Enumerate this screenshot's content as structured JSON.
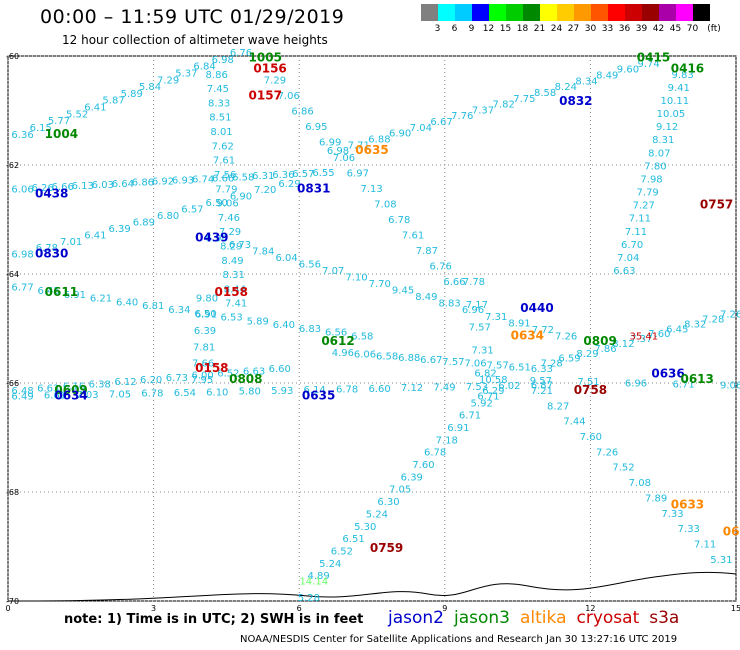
{
  "header": {
    "title": "00:00 – 11:59 UTC 01/29/2019",
    "subtitle": "12 hour collection of altimeter wave heights"
  },
  "legend": {
    "unit": "(ft)",
    "bins": [
      {
        "label": "3",
        "color": "#808080"
      },
      {
        "label": "6",
        "color": "#00ffff"
      },
      {
        "label": "9",
        "color": "#00ccff"
      },
      {
        "label": "12",
        "color": "#0000ff"
      },
      {
        "label": "15",
        "color": "#00ff00"
      },
      {
        "label": "18",
        "color": "#00cc00"
      },
      {
        "label": "21",
        "color": "#008800"
      },
      {
        "label": "24",
        "color": "#ffff00"
      },
      {
        "label": "27",
        "color": "#ffcc00"
      },
      {
        "label": "30",
        "color": "#ff9900"
      },
      {
        "label": "33",
        "color": "#ff5500"
      },
      {
        "label": "36",
        "color": "#ff0000"
      },
      {
        "label": "39",
        "color": "#cc0000"
      },
      {
        "label": "42",
        "color": "#990000"
      },
      {
        "label": "45",
        "color": "#aa00aa"
      },
      {
        "label": "70",
        "color": "#ff00ff"
      },
      {
        "label": "",
        "color": "#000000"
      }
    ]
  },
  "map": {
    "lat_labels": [
      "-60",
      "-62",
      "-64",
      "-66",
      "-68",
      "-70"
    ],
    "lon_labels": [
      "0",
      "3",
      "6",
      "9",
      "12",
      "15"
    ],
    "lat_range": [
      -70,
      -60
    ],
    "lon_range": [
      0,
      15
    ],
    "pass_tags": [
      {
        "text": "1004",
        "color": "#008800",
        "lon": 1.1,
        "lat": -61.5
      },
      {
        "text": "1005",
        "color": "#008800",
        "lon": 5.3,
        "lat": -60.1
      },
      {
        "text": "0156",
        "color": "#cc0000",
        "lon": 5.4,
        "lat": -60.3
      },
      {
        "text": "0157",
        "color": "#cc0000",
        "lon": 5.3,
        "lat": -60.8
      },
      {
        "text": "0415",
        "color": "#008800",
        "lon": 13.3,
        "lat": -60.1
      },
      {
        "text": "0416",
        "color": "#008800",
        "lon": 14.0,
        "lat": -60.3
      },
      {
        "text": "0832",
        "color": "#0000cc",
        "lon": 11.7,
        "lat": -60.9
      },
      {
        "text": "0635",
        "color": "#ff8800",
        "lon": 7.5,
        "lat": -61.8
      },
      {
        "text": "0438",
        "color": "#0000cc",
        "lon": 0.9,
        "lat": -62.6
      },
      {
        "text": "0831",
        "color": "#0000cc",
        "lon": 6.3,
        "lat": -62.5
      },
      {
        "text": "0757",
        "color": "#990000",
        "lon": 14.6,
        "lat": -62.8
      },
      {
        "text": "0439",
        "color": "#0000cc",
        "lon": 4.2,
        "lat": -63.4
      },
      {
        "text": "0830",
        "color": "#0000cc",
        "lon": 0.9,
        "lat": -63.7
      },
      {
        "text": "0611",
        "color": "#008800",
        "lon": 1.1,
        "lat": -64.4
      },
      {
        "text": "0158",
        "color": "#cc0000",
        "lon": 4.6,
        "lat": -64.4
      },
      {
        "text": "0440",
        "color": "#0000cc",
        "lon": 10.9,
        "lat": -64.7
      },
      {
        "text": "0634",
        "color": "#ff8800",
        "lon": 10.7,
        "lat": -65.2
      },
      {
        "text": "0612",
        "color": "#008800",
        "lon": 6.8,
        "lat": -65.3
      },
      {
        "text": "0809",
        "color": "#008800",
        "lon": 12.2,
        "lat": -65.3
      },
      {
        "text": "0158",
        "color": "#cc0000",
        "lon": 4.2,
        "lat": -65.8
      },
      {
        "text": "0808",
        "color": "#008800",
        "lon": 4.9,
        "lat": -66.0
      },
      {
        "text": "0636",
        "color": "#0000cc",
        "lon": 13.6,
        "lat": -65.9
      },
      {
        "text": "0613",
        "color": "#008800",
        "lon": 14.2,
        "lat": -66.0
      },
      {
        "text": "0609",
        "color": "#008800",
        "lon": 1.3,
        "lat": -66.2
      },
      {
        "text": "0634",
        "color": "#0000cc",
        "lon": 1.3,
        "lat": -66.3
      },
      {
        "text": "0635",
        "color": "#0000cc",
        "lon": 6.4,
        "lat": -66.3
      },
      {
        "text": "0758",
        "color": "#990000",
        "lon": 12.0,
        "lat": -66.2
      },
      {
        "text": "0633",
        "color": "#ff8800",
        "lon": 14.0,
        "lat": -68.3
      },
      {
        "text": "0759",
        "color": "#990000",
        "lon": 7.8,
        "lat": -69.1
      },
      {
        "text": "06",
        "color": "#ff8800",
        "lon": 14.9,
        "lat": -68.8
      }
    ],
    "tracks": [
      {
        "color": "#22bbdd",
        "lon0": 0.3,
        "lat0": -61.5,
        "lon1": 4.8,
        "lat1": -60.0,
        "values": [
          "6.36",
          "6.15",
          "5.77",
          "5.52",
          "6.41",
          "5.87",
          "5.89",
          "5.84",
          "7.29",
          "5.37",
          "6.84",
          "6.98",
          "6.76"
        ]
      },
      {
        "color": "#22bbdd",
        "lon0": 4.3,
        "lat0": -60.4,
        "lon1": 4.7,
        "lat1": -64.6,
        "values": [
          "8.86",
          "7.45",
          "8.33",
          "8.51",
          "8.01",
          "7.62",
          "7.61",
          "7.56",
          "7.79",
          "9.06",
          "7.46",
          "7.29",
          "8.29",
          "8.49",
          "8.31",
          "8.44",
          "7.41"
        ]
      },
      {
        "color": "#22bbdd",
        "lon0": 5.5,
        "lat0": -60.5,
        "lon1": 9.2,
        "lat1": -64.2,
        "values": [
          "7.29",
          "7.06",
          "6.86",
          "6.95",
          "6.99",
          "7.06",
          "6.97",
          "7.13",
          "7.08",
          "6.78",
          "7.61",
          "7.87",
          "6.76",
          "6.66"
        ]
      },
      {
        "color": "#22bbdd",
        "lon0": 6.8,
        "lat0": -61.8,
        "lon1": 13.2,
        "lat1": -60.2,
        "values": [
          "6.98",
          "7.71",
          "6.88",
          "6.90",
          "7.04",
          "6.67",
          "7.76",
          "7.37",
          "7.82",
          "7.75",
          "8.58",
          "8.24",
          "8.34",
          "8.49",
          "9.60",
          "9.74"
        ]
      },
      {
        "color": "#22bbdd",
        "lon0": 13.9,
        "lat0": -60.4,
        "lon1": 12.7,
        "lat1": -64.0,
        "values": [
          "9.83",
          "9.41",
          "10.11",
          "10.05",
          "9.12",
          "8.31",
          "8.07",
          "7.80",
          "7.98",
          "7.79",
          "7.27",
          "7.11",
          "7.11",
          "6.70",
          "7.04",
          "6.63"
        ]
      },
      {
        "color": "#22bbdd",
        "lon0": 0.3,
        "lat0": -62.5,
        "lon1": 6.5,
        "lat1": -62.2,
        "values": [
          "6.06",
          "6.26",
          "6.66",
          "6.13",
          "6.03",
          "6.64",
          "6.86",
          "6.92",
          "6.93",
          "6.74",
          "6.66",
          "6.58",
          "6.31",
          "6.36",
          "6.57",
          "6.55"
        ]
      },
      {
        "color": "#22bbdd",
        "lon0": 0.3,
        "lat0": -63.7,
        "lon1": 5.8,
        "lat1": -62.4,
        "values": [
          "6.98",
          "6.78",
          "7.01",
          "6.41",
          "6.39",
          "6.89",
          "6.80",
          "6.57",
          "6.50",
          "6.90",
          "7.20",
          "6.29"
        ]
      },
      {
        "color": "#22bbdd",
        "lon0": 4.3,
        "lat0": -63.4,
        "lon1": 11.5,
        "lat1": -65.2,
        "values": [
          "6.96",
          "6.73",
          "7.84",
          "6.04",
          "6.56",
          "7.07",
          "7.10",
          "7.70",
          "9.45",
          "8.49",
          "8.83",
          "6.96",
          "7.31",
          "8.91",
          "7.72",
          "7.26"
        ]
      },
      {
        "color": "#22bbdd",
        "lon0": 0.3,
        "lat0": -64.3,
        "lon1": 7.3,
        "lat1": -65.2,
        "values": [
          "6.77",
          "6.45",
          "6.91",
          "6.21",
          "6.40",
          "6.81",
          "6.34",
          "6.50",
          "6.53",
          "5.89",
          "6.40",
          "6.83",
          "6.56",
          "6.58"
        ]
      },
      {
        "color": "#22bbdd",
        "lon0": 4.1,
        "lat0": -64.5,
        "lon1": 4.0,
        "lat1": -66.0,
        "values": [
          "9.80",
          "6.91",
          "6.39",
          "7.81",
          "7.66",
          "7.95"
        ]
      },
      {
        "color": "#22bbdd",
        "lon0": 6.9,
        "lat0": -65.5,
        "lon1": 11.0,
        "lat1": -65.8,
        "values": [
          "4.96",
          "6.06",
          "6.58",
          "6.88",
          "6.67",
          "7.57",
          "7.06",
          "7.57",
          "6.51",
          "6.33"
        ]
      },
      {
        "color": "#22bbdd",
        "lon0": 9.6,
        "lat0": -64.2,
        "lon1": 9.9,
        "lat1": -66.3,
        "values": [
          "7.78",
          "7.17",
          "7.57",
          "7.31",
          "6.82",
          "6.71"
        ]
      },
      {
        "color": "#22bbdd",
        "lon0": 11.2,
        "lat0": -65.7,
        "lon1": 14.9,
        "lat1": -64.8,
        "values": [
          "7.28",
          "6.59",
          "8.29",
          "7.86",
          "8.12",
          "7.37",
          "7.60",
          "6.45",
          "8.32",
          "7.28",
          "7.26"
        ]
      },
      {
        "color": "#22bbdd",
        "lon0": 0.3,
        "lat0": -66.2,
        "lon1": 5.6,
        "lat1": -65.8,
        "values": [
          "6.48",
          "6.63",
          "6.16",
          "6.38",
          "6.12",
          "6.20",
          "6.73",
          "6.00",
          "6.52",
          "6.63",
          "6.60"
        ]
      },
      {
        "color": "#22bbdd",
        "lon0": 0.3,
        "lat0": -66.3,
        "lon1": 11.0,
        "lat1": -66.1,
        "values": [
          "6.49",
          "6.61",
          "7.03",
          "7.05",
          "6.78",
          "6.54",
          "6.10",
          "5.80",
          "5.93",
          "6.14",
          "6.78",
          "6.60",
          "7.12",
          "7.49",
          "7.53",
          "6.02",
          "6.87"
        ]
      },
      {
        "color": "#22bbdd",
        "lon0": 10.0,
        "lat0": -66.0,
        "lon1": 14.9,
        "lat1": -66.1,
        "values": [
          "10.58",
          "9.57",
          "7.51",
          "6.96",
          "6.71",
          "9.06"
        ]
      },
      {
        "color": "#22bbdd",
        "lon0": 11.0,
        "lat0": -66.2,
        "lon1": 14.7,
        "lat1": -69.3,
        "values": [
          "7.21",
          "8.27",
          "7.44",
          "7.60",
          "7.26",
          "7.52",
          "7.08",
          "7.89",
          "7.33",
          "7.33",
          "7.11",
          "5.31"
        ]
      },
      {
        "color": "#22bbdd",
        "lon0": 10.0,
        "lat0": -66.2,
        "lon1": 6.4,
        "lat1": -69.6,
        "values": [
          "6.29",
          "5.92",
          "6.71",
          "6.91",
          "7.18",
          "6.78",
          "7.60",
          "6.39",
          "7.05",
          "6.30",
          "5.24",
          "5.30",
          "6.51",
          "6.52",
          "5.24",
          "4.89"
        ]
      }
    ],
    "extra_labels": [
      {
        "text": "35.41",
        "color": "#cc0000",
        "lon": 13.1,
        "lat": -65.2
      },
      {
        "text": "14.14",
        "color": "#66ff66",
        "lon": 6.3,
        "lat": -69.7
      },
      {
        "text": "5.28",
        "color": "#22bbdd",
        "lon": 6.2,
        "lat": -70.0
      }
    ]
  },
  "footer": {
    "note": "note:  1) Time is in UTC;  2) SWH is in feet",
    "satellites": [
      {
        "name": "jason2",
        "color": "#0000cc"
      },
      {
        "name": "jason3",
        "color": "#008800"
      },
      {
        "name": "altika",
        "color": "#ff8800"
      },
      {
        "name": "cryosat",
        "color": "#cc0000"
      },
      {
        "name": "s3a",
        "color": "#990000"
      }
    ],
    "credit": "NOAA/NESDIS Center for Satellite Applications and Research   Jan 30 13:27:16 UTC 2019"
  }
}
